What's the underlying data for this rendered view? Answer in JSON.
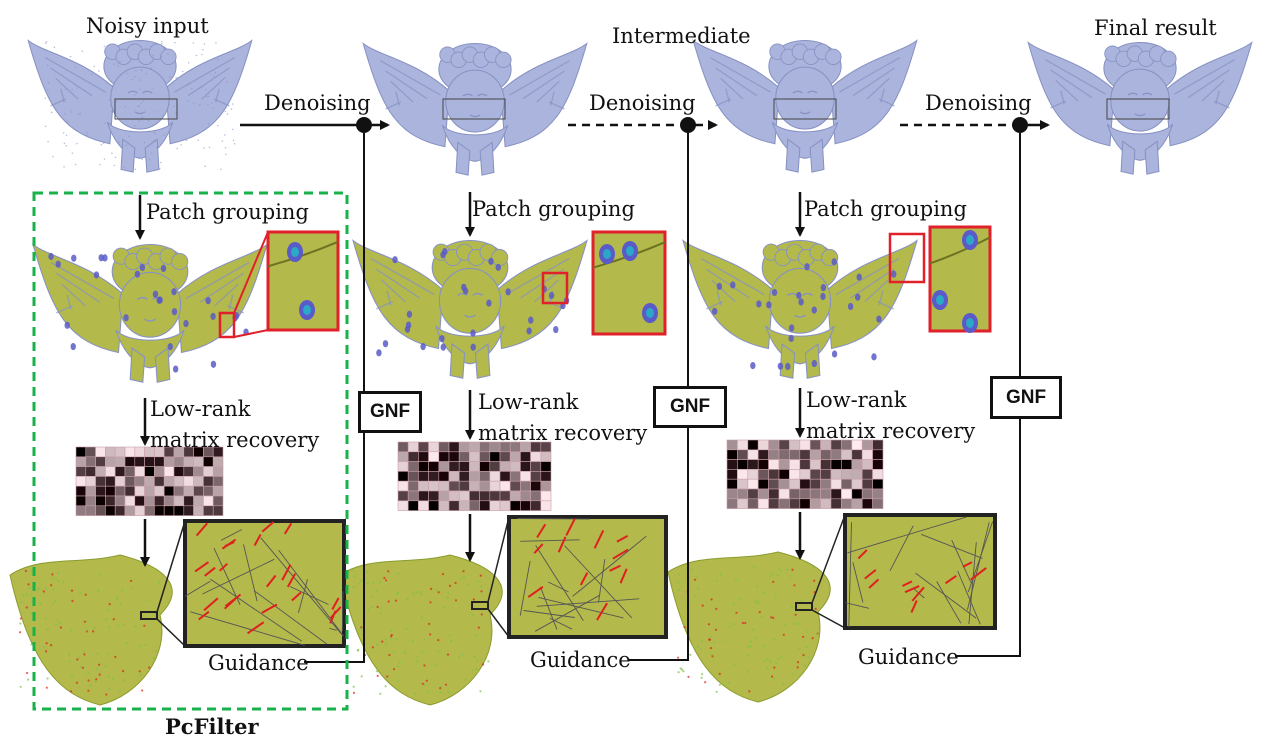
{
  "labels": {
    "noisy_input": "Noisy input",
    "intermediate": "Intermediate",
    "final_result": "Final result",
    "denoising": "Denoising",
    "patch_grouping": "Patch grouping",
    "low_rank_line1": "Low-rank",
    "low_rank_line2": "matrix recovery",
    "guidance": "Guidance",
    "gnf": "GNF",
    "pcfilter": "PcFilter"
  },
  "colors": {
    "mesh": "#aab4dc",
    "mesh_shadow": "#8792c4",
    "guidance_mesh": "#b3b94a",
    "patch_marker": "#5a5ac8",
    "zoom_border": "#e0202a",
    "dashed_box": "#19b24a",
    "arrow": "#111111",
    "normal_red": "#e02020"
  }
}
